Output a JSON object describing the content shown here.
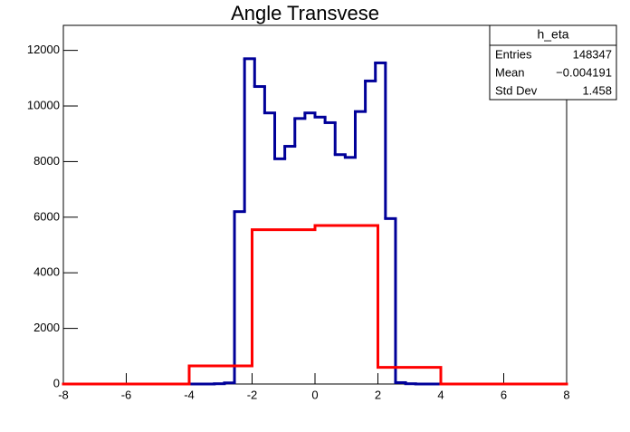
{
  "chart_data": {
    "type": "histogram",
    "title": "Angle Transvese",
    "xlim": [
      -8,
      8
    ],
    "xticks": [
      -8,
      -6,
      -4,
      -2,
      0,
      2,
      4,
      6,
      8
    ],
    "ylim": [
      0,
      12900
    ],
    "yticks": [
      0,
      2000,
      4000,
      6000,
      8000,
      10000,
      12000
    ],
    "series": [
      {
        "color": "#000099",
        "bins": [
          -8,
          -7.68,
          -7.36,
          -7.04,
          -6.72,
          -6.4,
          -6.08,
          -5.76,
          -5.44,
          -5.12,
          -4.8,
          -4.48,
          -4.16,
          -3.84,
          -3.52,
          -3.2,
          -2.88,
          -2.56,
          -2.24,
          -1.92,
          -1.6,
          -1.28,
          -0.96,
          -0.64,
          -0.32,
          0,
          0.32,
          0.64,
          0.96,
          1.28,
          1.6,
          1.92,
          2.24,
          2.56,
          2.88,
          3.2,
          3.52,
          3.84,
          4.16,
          4.48,
          4.8,
          5.12,
          5.44,
          5.76,
          6.08,
          6.4,
          6.72,
          7.04,
          7.36,
          7.68,
          8
        ],
        "values": [
          0,
          0,
          0,
          0,
          0,
          0,
          0,
          0,
          0,
          0,
          0,
          0,
          0,
          0,
          0,
          10,
          40,
          6200,
          11700,
          10700,
          9750,
          8100,
          8550,
          9550,
          9750,
          9600,
          9400,
          8250,
          8150,
          9800,
          10900,
          11550,
          5950,
          50,
          10,
          0,
          0,
          0,
          0,
          0,
          0,
          0,
          0,
          0,
          0,
          0,
          0,
          0,
          0,
          0
        ]
      },
      {
        "color": "#ff0000",
        "bins": [
          -8,
          -6,
          -4,
          -2,
          0,
          2,
          4,
          6,
          8
        ],
        "values": [
          0,
          0,
          650,
          5550,
          5700,
          600,
          0,
          0
        ]
      }
    ],
    "stats": {
      "name": "h_eta",
      "rows": [
        [
          "Entries",
          148347
        ],
        [
          "Mean",
          "−0.004191"
        ],
        [
          "Std Dev",
          1.458
        ]
      ]
    }
  }
}
